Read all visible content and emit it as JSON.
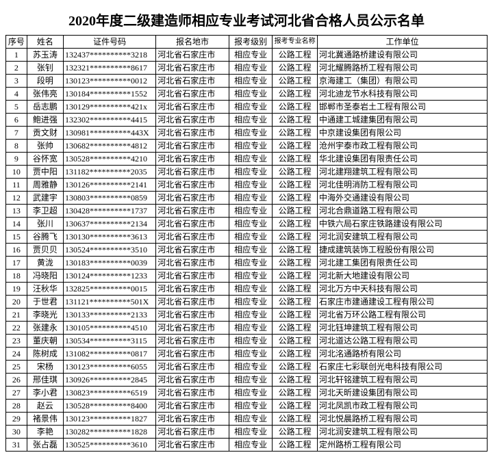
{
  "title": "2020年度二级建造师相应专业考试河北省合格人员公示名单",
  "columns": [
    "序号",
    "姓名",
    "证件号码",
    "报名地市",
    "报考级别",
    "报考专业名称",
    "工作单位"
  ],
  "rows": [
    [
      "1",
      "苏玉涛",
      "132437**********3218",
      "河北省石家庄市",
      "相应专业",
      "公路工程",
      "河北冀通路桥建设有限公司"
    ],
    [
      "2",
      "张钊",
      "132321**********8617",
      "河北省石家庄市",
      "相应专业",
      "公路工程",
      "河北耀腾路桥工程有限公司"
    ],
    [
      "3",
      "段明",
      "130123**********0012",
      "河北省石家庄市",
      "相应专业",
      "公路工程",
      "京海建工（集团）有限公司"
    ],
    [
      "4",
      "张伟亮",
      "130184**********1552",
      "河北省石家庄市",
      "相应专业",
      "公路工程",
      "河北迪龙节水科技有限公司"
    ],
    [
      "5",
      "岳志鹏",
      "130129**********421x",
      "河北省石家庄市",
      "相应专业",
      "公路工程",
      "邯郸市圣泰岩土工程有限公司"
    ],
    [
      "6",
      "鲍进强",
      "132302**********4415",
      "河北省石家庄市",
      "相应专业",
      "公路工程",
      "中通建工城建集团有限公司"
    ],
    [
      "7",
      "贡文财",
      "130981**********443X",
      "河北省石家庄市",
      "相应专业",
      "公路工程",
      "中京建设集团有限公司"
    ],
    [
      "8",
      "张帅",
      "130682**********4812",
      "河北省石家庄市",
      "相应专业",
      "公路工程",
      "沧州宇泰市政工程有限公司"
    ],
    [
      "9",
      "谷怀宽",
      "130528**********4210",
      "河北省石家庄市",
      "相应专业",
      "公路工程",
      "华北建设集团有限责任公司"
    ],
    [
      "10",
      "贾中阳",
      "131182**********2035",
      "河北省石家庄市",
      "相应专业",
      "公路工程",
      "河北建翔建筑工程有限公司"
    ],
    [
      "11",
      "周雅静",
      "130126**********2141",
      "河北省石家庄市",
      "相应专业",
      "公路工程",
      "河北佳明消防工程有限公司"
    ],
    [
      "12",
      "武建宇",
      "130803**********0859",
      "河北省石家庄市",
      "相应专业",
      "公路工程",
      "中海外交通建设有限公司"
    ],
    [
      "13",
      "李卫超",
      "130428**********1737",
      "河北省石家庄市",
      "相应专业",
      "公路工程",
      "河北合鼎道路工程有限公司"
    ],
    [
      "14",
      "张川",
      "130637**********2134",
      "河北省石家庄市",
      "相应专业",
      "公路工程",
      "中铁六局石家庄铁路建设有限公司"
    ],
    [
      "15",
      "谷腾飞",
      "130130**********3613",
      "河北省石家庄市",
      "相应专业",
      "公路工程",
      "河北润安建筑工程有限公司"
    ],
    [
      "16",
      "贾贝贝",
      "130524**********3510",
      "河北省石家庄市",
      "相应专业",
      "公路工程",
      "捷成建筑装饰工程股份有限公司"
    ],
    [
      "17",
      "黄泷",
      "130183**********0039",
      "河北省石家庄市",
      "相应专业",
      "公路工程",
      "河北建工集团有限责任公司"
    ],
    [
      "18",
      "冯晓阳",
      "130124**********1233",
      "河北省石家庄市",
      "相应专业",
      "公路工程",
      "河北新大地建设有限公司"
    ],
    [
      "19",
      "汪秋华",
      "132825**********0015",
      "河北省石家庄市",
      "相应专业",
      "公路工程",
      "河北万方中天科技有限公司"
    ],
    [
      "20",
      "于世君",
      "131121**********501X",
      "河北省石家庄市",
      "相应专业",
      "公路工程",
      "石家庄市建通建设工程有限公司"
    ],
    [
      "21",
      "李晓光",
      "130133**********2133",
      "河北省石家庄市",
      "相应专业",
      "公路工程",
      "河北省万环公路工程有限公司"
    ],
    [
      "22",
      "张建永",
      "130105**********4510",
      "河北省石家庄市",
      "相应专业",
      "公路工程",
      "河北钰坤建筑工程有限公司"
    ],
    [
      "23",
      "董庆朝",
      "130534**********3115",
      "河北省石家庄市",
      "相应专业",
      "公路工程",
      "河北道达公路工程有限公司"
    ],
    [
      "24",
      "陈树成",
      "131082**********0817",
      "河北省石家庄市",
      "相应专业",
      "公路工程",
      "河北洺通路桥有限公司"
    ],
    [
      "25",
      "宋杨",
      "130123**********6055",
      "河北省石家庄市",
      "相应专业",
      "公路工程",
      "石家庄七彩联创光电科技有限公司"
    ],
    [
      "26",
      "邢佳琪",
      "130926**********2845",
      "河北省石家庄市",
      "相应专业",
      "公路工程",
      "河北轩铭建筑工程有限公司"
    ],
    [
      "27",
      "李小君",
      "130823**********6519",
      "河北省石家庄市",
      "相应专业",
      "公路工程",
      "河北天昕建设集团有限公司"
    ],
    [
      "28",
      "赵云",
      "130528**********8400",
      "河北省石家庄市",
      "相应专业",
      "公路工程",
      "河北凤凯市政工程有限公司"
    ],
    [
      "29",
      "褚景伟",
      "130123**********1827",
      "河北省石家庄市",
      "相应专业",
      "公路工程",
      "河北悦晨路桥工程有限公司"
    ],
    [
      "30",
      "李艳",
      "130282**********1828",
      "河北省石家庄市",
      "相应专业",
      "公路工程",
      "河北润安建筑工程有限公司"
    ],
    [
      "31",
      "张占磊",
      "130525**********3610",
      "河北省石家庄市",
      "相应专业",
      "公路工程",
      "定州路桥工程有限公司"
    ]
  ]
}
